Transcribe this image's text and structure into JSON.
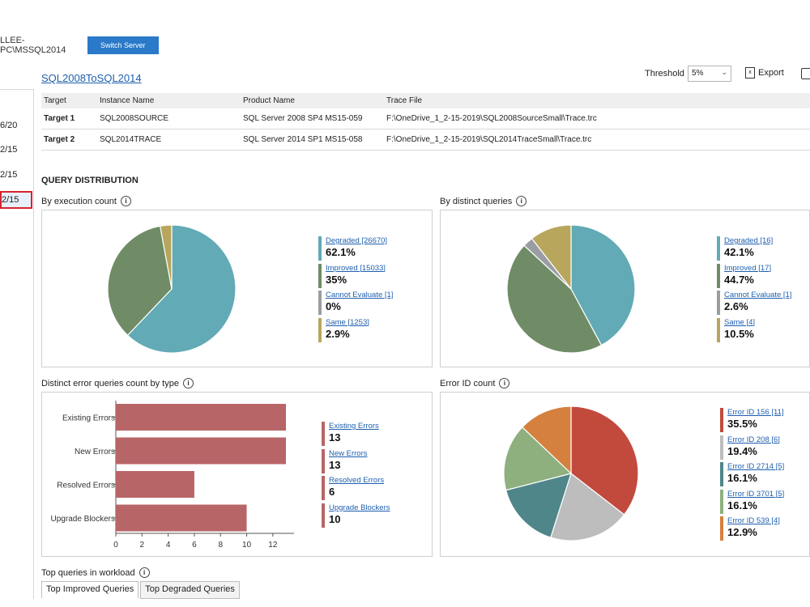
{
  "server": {
    "name": "LLEE-PC\\MSSQL2014",
    "switch_label": "Switch Server"
  },
  "sessions": {
    "items": [
      "6/20",
      "2/15",
      "2/15",
      "2/15"
    ],
    "selected_index": 3
  },
  "analysis": {
    "title": "SQL2008ToSQL2014"
  },
  "toolbar": {
    "threshold_label": "Threshold",
    "threshold_value": "5%",
    "export_label": "Export"
  },
  "targets": {
    "headers": [
      "Target",
      "Instance Name",
      "Product Name",
      "Trace File"
    ],
    "rows": [
      [
        "Target 1",
        "SQL2008SOURCE",
        "SQL Server 2008 SP4 MS15-059",
        "F:\\OneDrive_1_2-15-2019\\SQL2008SourceSmall\\Trace.trc"
      ],
      [
        "Target 2",
        "SQL2014TRACE",
        "SQL Server 2014 SP1 MS15-058",
        "F:\\OneDrive_1_2-15-2019\\SQL2014TraceSmall\\Trace.trc"
      ]
    ]
  },
  "section_title": "QUERY DISTRIBUTION",
  "panels": {
    "exec_count": {
      "title": "By execution count"
    },
    "distinct_queries": {
      "title": "By distinct queries"
    },
    "error_types": {
      "title": "Distinct error queries count by type"
    },
    "error_id": {
      "title": "Error ID count"
    }
  },
  "workload": {
    "title": "Top queries in workload",
    "tabs": [
      "Top Improved Queries",
      "Top Degraded Queries"
    ]
  },
  "colors": {
    "degraded": "#62aab5",
    "improved": "#6f8c66",
    "cannot_evaluate": "#9a9ea3",
    "same": "#b8a65d",
    "error_bar": "#b86567"
  },
  "chart_data": [
    {
      "type": "pie",
      "legend": [
        {
          "label": "Degraded [26670]",
          "value": "62.1%"
        },
        {
          "label": "Improved [15033]",
          "value": "35%"
        },
        {
          "label": "Cannot Evaluate [1]",
          "value": "0%"
        },
        {
          "label": "Same [1253]",
          "value": "2.9%"
        }
      ],
      "values": [
        62.1,
        35,
        0,
        2.9
      ],
      "colors": [
        "#62aab5",
        "#6f8c66",
        "#9a9ea3",
        "#b8a65d"
      ]
    },
    {
      "type": "pie",
      "legend": [
        {
          "label": "Degraded [16]",
          "value": "42.1%"
        },
        {
          "label": "Improved [17]",
          "value": "44.7%"
        },
        {
          "label": "Cannot Evaluate [1]",
          "value": "2.6%"
        },
        {
          "label": "Same [4]",
          "value": "10.5%"
        }
      ],
      "values": [
        42.1,
        44.7,
        2.6,
        10.5
      ],
      "colors": [
        "#62aab5",
        "#6f8c66",
        "#9a9ea3",
        "#b8a65d"
      ]
    },
    {
      "type": "bar",
      "orientation": "horizontal",
      "categories": [
        "Existing Errors",
        "New Errors",
        "Resolved Errors",
        "Upgrade Blockers"
      ],
      "values": [
        13,
        13,
        6,
        10
      ],
      "xlim": [
        0,
        13
      ],
      "xticks": [
        "0",
        "2",
        "4",
        "6",
        "8",
        "10",
        "12"
      ],
      "legend": [
        {
          "label": "Existing Errors",
          "value": "13"
        },
        {
          "label": "New Errors",
          "value": "13"
        },
        {
          "label": "Resolved Errors",
          "value": "6"
        },
        {
          "label": "Upgrade Blockers",
          "value": "10"
        }
      ],
      "color": "#b86567"
    },
    {
      "type": "pie",
      "legend": [
        {
          "label": "Error ID 156 [11]",
          "value": "35.5%"
        },
        {
          "label": "Error ID 208 [6]",
          "value": "19.4%"
        },
        {
          "label": "Error ID 2714 [5]",
          "value": "16.1%"
        },
        {
          "label": "Error ID 3701 [5]",
          "value": "16.1%"
        },
        {
          "label": "Error ID 539 [4]",
          "value": "12.9%"
        }
      ],
      "values": [
        35.5,
        19.4,
        16.1,
        16.1,
        12.9
      ],
      "colors": [
        "#c24a3d",
        "#bdbdbd",
        "#4f868a",
        "#8db07e",
        "#d5803f"
      ]
    }
  ]
}
